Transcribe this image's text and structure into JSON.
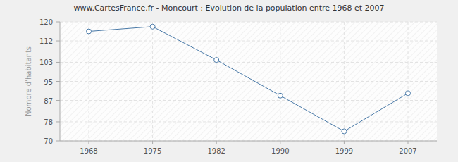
{
  "chart_data": {
    "type": "line",
    "title": "www.CartesFrance.fr - Moncourt : Evolution de la population entre 1968 et 2007",
    "y_label": "Nombre d'habitants",
    "categories": [
      "1968",
      "1975",
      "1982",
      "1990",
      "1999",
      "2007"
    ],
    "values": [
      116,
      118,
      104,
      89,
      74,
      90
    ],
    "color": "#4a7aa8",
    "marker": "circle",
    "ylim": [
      70,
      120
    ],
    "yticks": [
      70,
      78,
      87,
      95,
      103,
      112,
      120
    ],
    "grid": true
  }
}
